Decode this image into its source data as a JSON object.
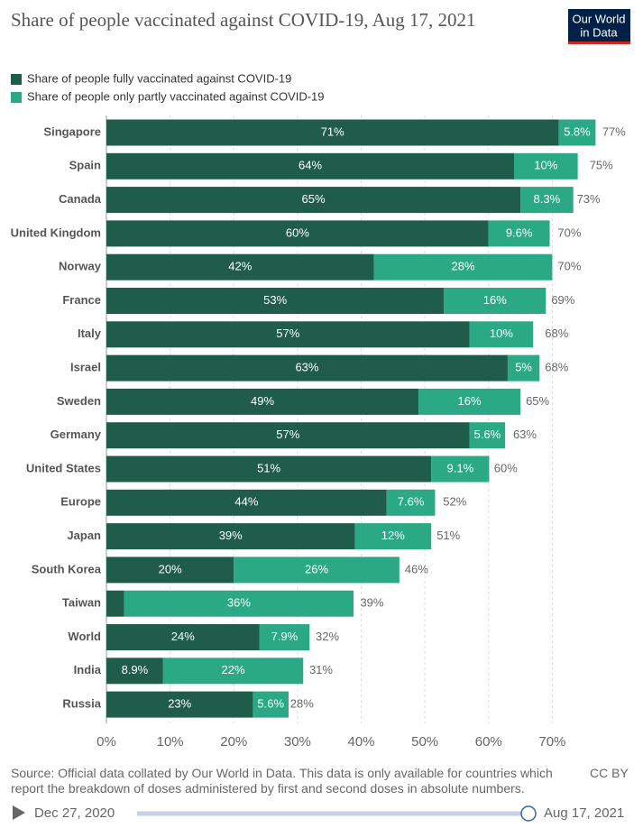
{
  "chart_data": {
    "type": "stacked-barh",
    "title": "Share of people vaccinated against COVID-19, Aug 17, 2021",
    "categories": [
      "Singapore",
      "Spain",
      "Canada",
      "United Kingdom",
      "Norway",
      "France",
      "Italy",
      "Israel",
      "Sweden",
      "Germany",
      "United States",
      "Europe",
      "Japan",
      "South Korea",
      "Taiwan",
      "World",
      "India",
      "Russia"
    ],
    "series": [
      {
        "name": "Share of people fully vaccinated against COVID-19",
        "color": "#1f5c4a",
        "values": [
          71,
          64,
          65,
          60,
          42,
          53,
          57,
          63,
          49,
          57,
          51,
          44,
          39,
          20,
          2.8,
          24,
          8.9,
          23
        ],
        "value_labels": [
          "71%",
          "64%",
          "65%",
          "60%",
          "42%",
          "53%",
          "57%",
          "63%",
          "49%",
          "57%",
          "51%",
          "44%",
          "39%",
          "20%",
          null,
          "24%",
          "8.9%",
          "23%"
        ]
      },
      {
        "name": "Share of people only partly vaccinated against COVID-19",
        "color": "#2aa984",
        "values": [
          5.8,
          10,
          8.3,
          9.6,
          28,
          16,
          10,
          5,
          16,
          5.6,
          9.1,
          7.6,
          12,
          26,
          36,
          7.9,
          22,
          5.6
        ],
        "value_labels": [
          "5.8%",
          "10%",
          "8.3%",
          "9.6%",
          "28%",
          "16%",
          "10%",
          "5%",
          "16%",
          "5.6%",
          "9.1%",
          "7.6%",
          "12%",
          "26%",
          "36%",
          "7.9%",
          "22%",
          "5.6%"
        ]
      }
    ],
    "totals": [
      77,
      75,
      73,
      70,
      70,
      69,
      68,
      68,
      65,
      63,
      60,
      52,
      51,
      46,
      39,
      32,
      31,
      28
    ],
    "total_labels": [
      "77%",
      "75%",
      "73%",
      "70%",
      "70%",
      "69%",
      "68%",
      "68%",
      "65%",
      "63%",
      "60%",
      "52%",
      "51%",
      "46%",
      "39%",
      "32%",
      "31%",
      "28%"
    ],
    "xlim": [
      0,
      80
    ],
    "xticks": [
      {
        "value": 0,
        "label": "0%"
      },
      {
        "value": 10,
        "label": "10%"
      },
      {
        "value": 20,
        "label": "20%"
      },
      {
        "value": 30,
        "label": "30%"
      },
      {
        "value": 40,
        "label": "40%"
      },
      {
        "value": 50,
        "label": "50%"
      },
      {
        "value": 60,
        "label": "60%"
      },
      {
        "value": 70,
        "label": "70%"
      }
    ],
    "grid": true,
    "source": "Source: Official data collated by Our World in Data. This data is only available for countries which report the breakdown of doses administered by first and second doses in absolute numbers."
  },
  "logo": [
    "Our World",
    "in Data"
  ],
  "license": "CC BY",
  "timeline": {
    "start": "Dec 27, 2020",
    "end": "Aug 17, 2021"
  }
}
